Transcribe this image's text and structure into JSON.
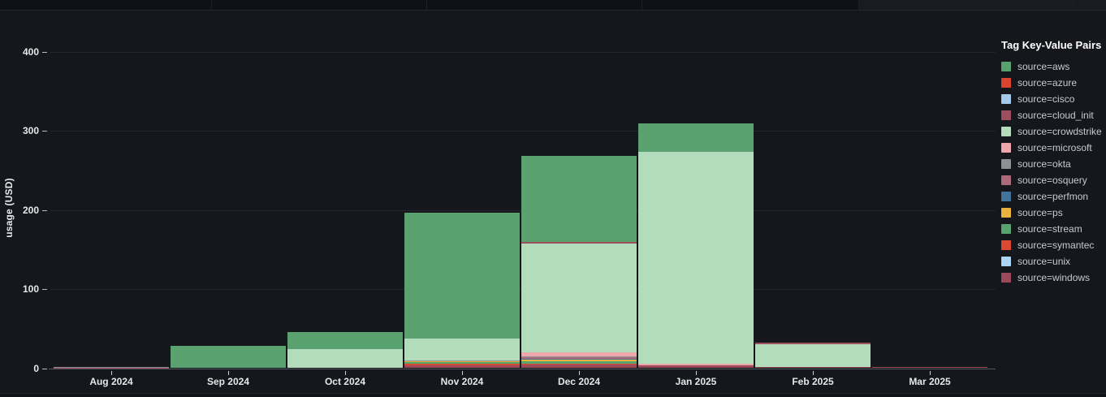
{
  "page": {
    "background": "#15171c"
  },
  "chart": {
    "y_axis": {
      "label": "usage (USD)",
      "ticks": [
        400,
        300,
        200,
        100,
        0
      ]
    },
    "x_axis": {
      "labels": [
        "Aug 2024",
        "Sep 2024",
        "Oct 2024",
        "Nov 2024",
        "Dec 2024",
        "Jan 2025",
        "Feb 2025",
        "Mar 2025"
      ]
    }
  },
  "chart_data": {
    "type": "bar",
    "stacked": true,
    "title": "",
    "xlabel": "",
    "ylabel": "usage (USD)",
    "ylim": [
      0,
      424
    ],
    "grid": true,
    "legend_position": "right",
    "legend_title": "Tag Key-Value Pairs",
    "categories": [
      "Aug 2024",
      "Sep 2024",
      "Oct 2024",
      "Nov 2024",
      "Dec 2024",
      "Jan 2025",
      "Feb 2025",
      "Mar 2025"
    ],
    "stack_order_note": "series listed bottom-to-top of the stack",
    "series": [
      {
        "name": "source=windows",
        "color": "#9c4a5a",
        "values": [
          0.5,
          0,
          0,
          3,
          4,
          3,
          1,
          1
        ]
      },
      {
        "name": "source=unix",
        "color": "#abd4f5",
        "values": [
          0,
          0,
          0,
          0,
          0,
          0,
          0,
          0
        ]
      },
      {
        "name": "source=symantec",
        "color": "#da4a33",
        "values": [
          0,
          0,
          0,
          2,
          1,
          0,
          0,
          0
        ]
      },
      {
        "name": "source=stream",
        "color": "#57a46e",
        "values": [
          0,
          0,
          0,
          2,
          3,
          0,
          0,
          0
        ]
      },
      {
        "name": "source=ps",
        "color": "#e8b23c",
        "values": [
          0,
          0,
          0,
          1.5,
          2,
          0,
          0,
          0
        ]
      },
      {
        "name": "source=perfmon",
        "color": "#40749b",
        "values": [
          0,
          0,
          0,
          0,
          1,
          0,
          0,
          0
        ]
      },
      {
        "name": "source=osquery",
        "color": "#ad6a7a",
        "values": [
          0,
          0,
          0,
          0.5,
          2,
          0,
          0,
          0
        ]
      },
      {
        "name": "source=okta",
        "color": "#8e9094",
        "values": [
          0.5,
          0,
          0,
          0.5,
          1,
          0,
          0,
          0
        ]
      },
      {
        "name": "source=microsoft",
        "color": "#eda6ac",
        "values": [
          0,
          0,
          0,
          0,
          5,
          2,
          0,
          0
        ]
      },
      {
        "name": "source=crowdstrike",
        "color": "#b2dcbc",
        "values": [
          0,
          0,
          24,
          27,
          138,
          268,
          29,
          0
        ]
      },
      {
        "name": "source=cloud_init",
        "color": "#9d4f5e",
        "values": [
          0,
          0,
          0,
          0,
          2,
          0,
          2,
          0.5
        ]
      },
      {
        "name": "source=cisco",
        "color": "#a5c9e9",
        "values": [
          0,
          0,
          0,
          0,
          0,
          0,
          0,
          0
        ]
      },
      {
        "name": "source=azure",
        "color": "#d8442e",
        "values": [
          0,
          0,
          0,
          0,
          0,
          0,
          0,
          0
        ]
      },
      {
        "name": "source=aws",
        "color": "#5aa170",
        "values": [
          0,
          28,
          21,
          159,
          109,
          36,
          0,
          0
        ]
      }
    ]
  },
  "legend": {
    "title": "Tag Key-Value Pairs",
    "items": [
      {
        "label": "source=aws",
        "color": "#5aa170"
      },
      {
        "label": "source=azure",
        "color": "#d8442e"
      },
      {
        "label": "source=cisco",
        "color": "#a5c9e9"
      },
      {
        "label": "source=cloud_init",
        "color": "#9d4f5e"
      },
      {
        "label": "source=crowdstrike",
        "color": "#b2dcbc"
      },
      {
        "label": "source=microsoft",
        "color": "#eda6ac"
      },
      {
        "label": "source=okta",
        "color": "#8e9094"
      },
      {
        "label": "source=osquery",
        "color": "#ad6a7a"
      },
      {
        "label": "source=perfmon",
        "color": "#40749b"
      },
      {
        "label": "source=ps",
        "color": "#e8b23c"
      },
      {
        "label": "source=stream",
        "color": "#57a46e"
      },
      {
        "label": "source=symantec",
        "color": "#da4a33"
      },
      {
        "label": "source=unix",
        "color": "#abd4f5"
      },
      {
        "label": "source=windows",
        "color": "#9c4a5a"
      }
    ]
  }
}
